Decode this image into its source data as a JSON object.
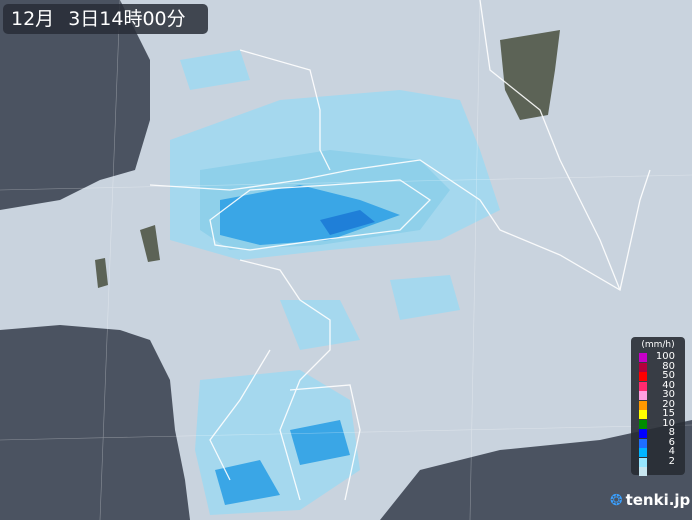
{
  "header": {
    "month": "12月",
    "datetime": "3日14時00分"
  },
  "legend": {
    "unit": "(mm/h)",
    "items": [
      {
        "label": "100",
        "color": "#c800c8"
      },
      {
        "label": "80",
        "color": "#b4003c"
      },
      {
        "label": "50",
        "color": "#ff0000"
      },
      {
        "label": "40",
        "color": "#ff2a6e"
      },
      {
        "label": "30",
        "color": "#ff9ee0"
      },
      {
        "label": "20",
        "color": "#ff9900"
      },
      {
        "label": "15",
        "color": "#ffff00"
      },
      {
        "label": "10",
        "color": "#008c00"
      },
      {
        "label": "8",
        "color": "#0000ff"
      },
      {
        "label": "6",
        "color": "#1e6eff"
      },
      {
        "label": "4",
        "color": "#00b4ff"
      },
      {
        "label": "2",
        "color": "#96e6ff"
      },
      {
        "label": "",
        "color": "#c8e6f0"
      }
    ]
  },
  "brand": {
    "name": "tenki.jp"
  },
  "colors": {
    "sea": "#4b5361",
    "land": "#c9d3de",
    "no_data_land": "#5c6356",
    "rain_light": "#8fd0ea",
    "rain_medium": "#3aa6e6",
    "rain_heavy": "#1f7fd8"
  }
}
